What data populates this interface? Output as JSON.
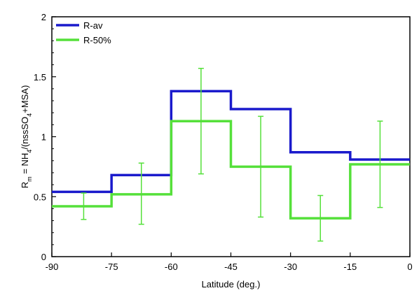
{
  "chart_data": {
    "type": "line",
    "step": true,
    "xlabel": "Latitude  (deg.)",
    "ylabel_parts": {
      "main": "R",
      "main_sub": "m",
      "eq": " = NH",
      "eq_sub": "4",
      "mid": "/(nssSO",
      "mid_sub": "4",
      "end": "+MSA)"
    },
    "xlim": [
      -90,
      0
    ],
    "ylim": [
      0,
      2
    ],
    "xticks": [
      -90,
      -75,
      -60,
      -45,
      -30,
      -15,
      0
    ],
    "xtick_labels": [
      "-90",
      "-75",
      "-60",
      "-45",
      "-30",
      "-15",
      "0"
    ],
    "yticks": [
      0,
      0.5,
      1,
      1.5,
      2
    ],
    "ytick_labels": [
      "0",
      "0.5",
      "1",
      "1.5",
      "2"
    ],
    "grid": false,
    "legend_position": "top-left",
    "bin_edges": [
      -90,
      -75,
      -60,
      -45,
      -30,
      -15,
      0
    ],
    "series": [
      {
        "name": "R-av",
        "color": "#1a1acc",
        "values": [
          0.54,
          0.68,
          1.38,
          1.23,
          0.87,
          0.81
        ]
      },
      {
        "name": "R-50%",
        "color": "#55e03a",
        "values": [
          0.42,
          0.52,
          1.13,
          0.75,
          0.32,
          0.77
        ],
        "error_bars": [
          {
            "x": -82,
            "low": 0.31,
            "high": 0.53
          },
          {
            "x": -67.5,
            "low": 0.27,
            "high": 0.78
          },
          {
            "x": -52.5,
            "low": 0.69,
            "high": 1.57
          },
          {
            "x": -37.5,
            "low": 0.33,
            "high": 1.17
          },
          {
            "x": -22.5,
            "low": 0.13,
            "high": 0.51
          },
          {
            "x": -7.5,
            "low": 0.41,
            "high": 1.13
          }
        ]
      }
    ]
  }
}
